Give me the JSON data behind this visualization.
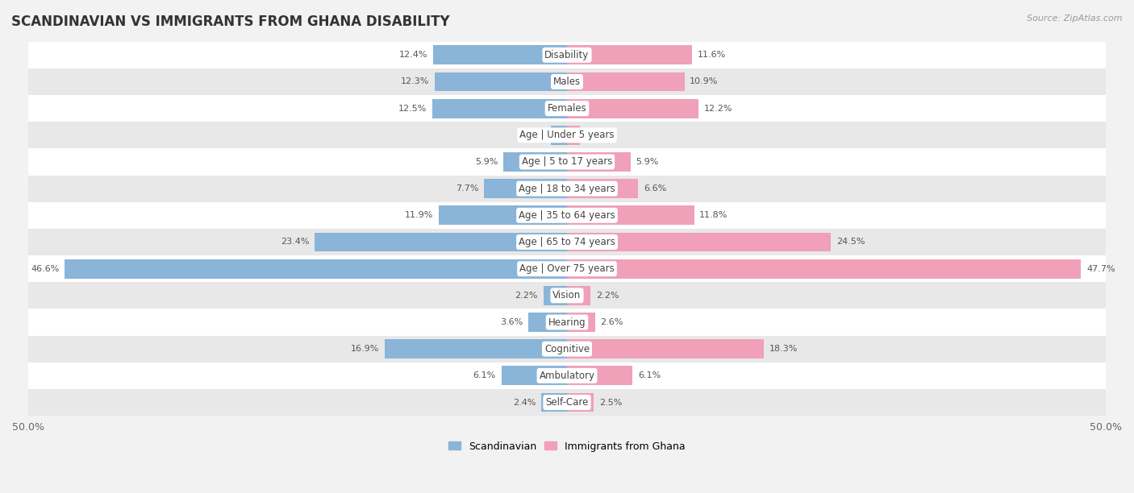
{
  "title": "SCANDINAVIAN VS IMMIGRANTS FROM GHANA DISABILITY",
  "source": "Source: ZipAtlas.com",
  "categories": [
    "Disability",
    "Males",
    "Females",
    "Age | Under 5 years",
    "Age | 5 to 17 years",
    "Age | 18 to 34 years",
    "Age | 35 to 64 years",
    "Age | 65 to 74 years",
    "Age | Over 75 years",
    "Vision",
    "Hearing",
    "Cognitive",
    "Ambulatory",
    "Self-Care"
  ],
  "scandinavian": [
    12.4,
    12.3,
    12.5,
    1.5,
    5.9,
    7.7,
    11.9,
    23.4,
    46.6,
    2.2,
    3.6,
    16.9,
    6.1,
    2.4
  ],
  "ghana": [
    11.6,
    10.9,
    12.2,
    1.2,
    5.9,
    6.6,
    11.8,
    24.5,
    47.7,
    2.2,
    2.6,
    18.3,
    6.1,
    2.5
  ],
  "scandinavian_color": "#8ab4d8",
  "ghana_color": "#f0a0b8",
  "background_color": "#f2f2f2",
  "row_color_even": "#ffffff",
  "row_color_odd": "#e8e8e8",
  "axis_limit": 50.0,
  "legend_label_1": "Scandinavian",
  "legend_label_2": "Immigrants from Ghana",
  "title_fontsize": 12,
  "label_fontsize": 8.5,
  "value_fontsize": 8,
  "bar_height": 0.72
}
